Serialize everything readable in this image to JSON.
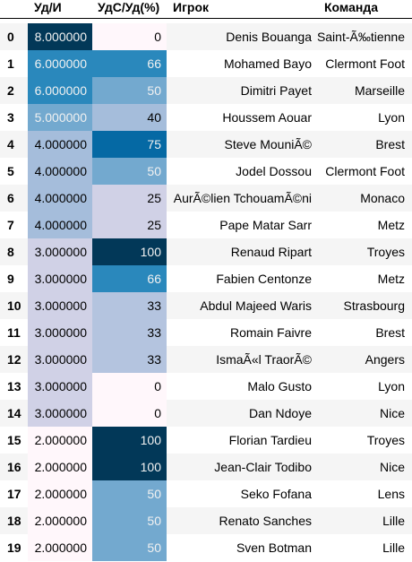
{
  "columns": {
    "ud": "Уд/И",
    "uds": "УдС/Уд(%)",
    "player": "Игрок",
    "team": "Команда"
  },
  "rows": [
    {
      "idx": "0",
      "ud": "8.000000",
      "ud_bg": "#023858",
      "ud_fg": "#f1f1f1",
      "uds": "0",
      "uds_bg": "#fff7fb",
      "uds_fg": "#000000",
      "player": "Denis Bouanga",
      "team": "Saint-Ã‰tienne"
    },
    {
      "idx": "1",
      "ud": "6.000000",
      "ud_bg": "#2a88bc",
      "ud_fg": "#f1f1f1",
      "uds": "66",
      "uds_bg": "#2a88bc",
      "uds_fg": "#f1f1f1",
      "player": "Mohamed Bayo",
      "team": "Clermont Foot"
    },
    {
      "idx": "2",
      "ud": "6.000000",
      "ud_bg": "#2a88bc",
      "ud_fg": "#f1f1f1",
      "uds": "50",
      "uds_bg": "#73a9cf",
      "uds_fg": "#f1f1f1",
      "player": "Dimitri Payet",
      "team": "Marseille"
    },
    {
      "idx": "3",
      "ud": "5.000000",
      "ud_bg": "#73a9cf",
      "ud_fg": "#f1f1f1",
      "uds": "40",
      "uds_bg": "#a5bddb",
      "uds_fg": "#000000",
      "player": "Houssem Aouar",
      "team": "Lyon"
    },
    {
      "idx": "4",
      "ud": "4.000000",
      "ud_bg": "#a5bddb",
      "ud_fg": "#000000",
      "uds": "75",
      "uds_bg": "#0569a4",
      "uds_fg": "#f1f1f1",
      "player": "Steve MouniÃ©",
      "team": "Brest"
    },
    {
      "idx": "5",
      "ud": "4.000000",
      "ud_bg": "#a5bddb",
      "ud_fg": "#000000",
      "uds": "50",
      "uds_bg": "#73a9cf",
      "uds_fg": "#f1f1f1",
      "player": "Jodel Dossou",
      "team": "Clermont Foot"
    },
    {
      "idx": "6",
      "ud": "4.000000",
      "ud_bg": "#a5bddb",
      "ud_fg": "#000000",
      "uds": "25",
      "uds_bg": "#d0d1e6",
      "uds_fg": "#000000",
      "player": "AurÃ©lien TchouamÃ©ni",
      "team": "Monaco"
    },
    {
      "idx": "7",
      "ud": "4.000000",
      "ud_bg": "#a5bddb",
      "ud_fg": "#000000",
      "uds": "25",
      "uds_bg": "#d0d1e6",
      "uds_fg": "#000000",
      "player": "Pape Matar Sarr",
      "team": "Metz"
    },
    {
      "idx": "8",
      "ud": "3.000000",
      "ud_bg": "#d0d1e6",
      "ud_fg": "#000000",
      "uds": "100",
      "uds_bg": "#023858",
      "uds_fg": "#f1f1f1",
      "player": "Renaud Ripart",
      "team": "Troyes"
    },
    {
      "idx": "9",
      "ud": "3.000000",
      "ud_bg": "#d0d1e6",
      "ud_fg": "#000000",
      "uds": "66",
      "uds_bg": "#2a88bc",
      "uds_fg": "#f1f1f1",
      "player": "Fabien Centonze",
      "team": "Metz"
    },
    {
      "idx": "10",
      "ud": "3.000000",
      "ud_bg": "#d0d1e6",
      "ud_fg": "#000000",
      "uds": "33",
      "uds_bg": "#b4c4df",
      "uds_fg": "#000000",
      "player": "Abdul Majeed Waris",
      "team": "Strasbourg"
    },
    {
      "idx": "11",
      "ud": "3.000000",
      "ud_bg": "#d0d1e6",
      "ud_fg": "#000000",
      "uds": "33",
      "uds_bg": "#b4c4df",
      "uds_fg": "#000000",
      "player": "Romain Faivre",
      "team": "Brest"
    },
    {
      "idx": "12",
      "ud": "3.000000",
      "ud_bg": "#d0d1e6",
      "ud_fg": "#000000",
      "uds": "33",
      "uds_bg": "#b4c4df",
      "uds_fg": "#000000",
      "player": "IsmaÃ«l TraorÃ©",
      "team": "Angers"
    },
    {
      "idx": "13",
      "ud": "3.000000",
      "ud_bg": "#d0d1e6",
      "ud_fg": "#000000",
      "uds": "0",
      "uds_bg": "#fff7fb",
      "uds_fg": "#000000",
      "player": "Malo Gusto",
      "team": "Lyon"
    },
    {
      "idx": "14",
      "ud": "3.000000",
      "ud_bg": "#d0d1e6",
      "ud_fg": "#000000",
      "uds": "0",
      "uds_bg": "#fff7fb",
      "uds_fg": "#000000",
      "player": "Dan Ndoye",
      "team": "Nice"
    },
    {
      "idx": "15",
      "ud": "2.000000",
      "ud_bg": "#fff7fb",
      "ud_fg": "#000000",
      "uds": "100",
      "uds_bg": "#023858",
      "uds_fg": "#f1f1f1",
      "player": "Florian Tardieu",
      "team": "Troyes"
    },
    {
      "idx": "16",
      "ud": "2.000000",
      "ud_bg": "#fff7fb",
      "ud_fg": "#000000",
      "uds": "100",
      "uds_bg": "#023858",
      "uds_fg": "#f1f1f1",
      "player": "Jean-Clair Todibo",
      "team": "Nice"
    },
    {
      "idx": "17",
      "ud": "2.000000",
      "ud_bg": "#fff7fb",
      "ud_fg": "#000000",
      "uds": "50",
      "uds_bg": "#73a9cf",
      "uds_fg": "#f1f1f1",
      "player": "Seko Fofana",
      "team": "Lens"
    },
    {
      "idx": "18",
      "ud": "2.000000",
      "ud_bg": "#fff7fb",
      "ud_fg": "#000000",
      "uds": "50",
      "uds_bg": "#73a9cf",
      "uds_fg": "#f1f1f1",
      "player": "Renato Sanches",
      "team": "Lille"
    },
    {
      "idx": "19",
      "ud": "2.000000",
      "ud_bg": "#fff7fb",
      "ud_fg": "#000000",
      "uds": "50",
      "uds_bg": "#73a9cf",
      "uds_fg": "#f1f1f1",
      "player": "Sven Botman",
      "team": "Lille"
    }
  ]
}
